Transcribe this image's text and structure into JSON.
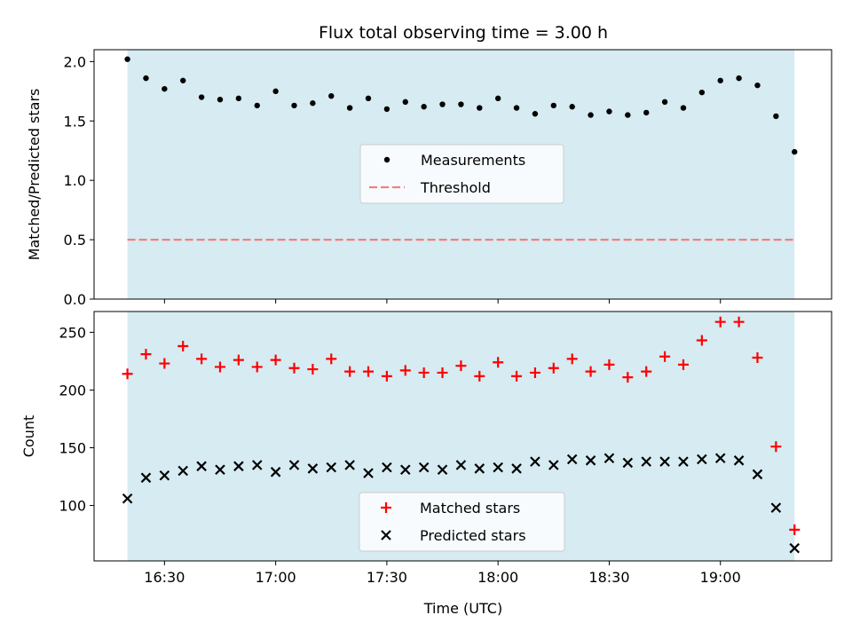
{
  "chart_data": {
    "title": "Flux total observing time = 3.00 h",
    "xlabel": "Time (UTC)",
    "x_ticks": [
      "16:30",
      "17:00",
      "17:30",
      "18:00",
      "18:30",
      "19:00"
    ],
    "x_tick_values": [
      "16:30",
      "17:00",
      "17:30",
      "18:00",
      "18:30",
      "19:00"
    ],
    "xlim": [
      "16:11",
      "19:30"
    ],
    "shade_span": [
      "16:20",
      "19:20"
    ],
    "shade_color": "#add8e6",
    "x": [
      "16:20",
      "16:25",
      "16:30",
      "16:35",
      "16:40",
      "16:45",
      "16:50",
      "16:55",
      "17:00",
      "17:05",
      "17:10",
      "17:15",
      "17:20",
      "17:25",
      "17:30",
      "17:35",
      "17:40",
      "17:45",
      "17:50",
      "17:55",
      "18:00",
      "18:05",
      "18:10",
      "18:15",
      "18:20",
      "18:25",
      "18:30",
      "18:35",
      "18:40",
      "18:45",
      "18:50",
      "18:55",
      "19:00",
      "19:05",
      "19:10",
      "19:15",
      "19:20"
    ],
    "panels": [
      {
        "type": "scatter",
        "ylabel": "Matched/Predicted stars",
        "ylim": [
          0.0,
          2.1
        ],
        "y_ticks": [
          "0.0",
          "0.5",
          "1.0",
          "1.5",
          "2.0"
        ],
        "y_tick_values": [
          0.0,
          0.5,
          1.0,
          1.5,
          2.0
        ],
        "legend": "center",
        "series": [
          {
            "name": "Measurements",
            "kind": "scatter",
            "marker": "dot",
            "color": "#000000",
            "values": [
              2.02,
              1.86,
              1.77,
              1.84,
              1.7,
              1.68,
              1.69,
              1.63,
              1.75,
              1.63,
              1.65,
              1.71,
              1.61,
              1.69,
              1.6,
              1.66,
              1.62,
              1.64,
              1.64,
              1.61,
              1.69,
              1.61,
              1.56,
              1.63,
              1.62,
              1.55,
              1.58,
              1.55,
              1.57,
              1.66,
              1.61,
              1.74,
              1.84,
              1.86,
              1.8,
              1.54,
              1.24
            ]
          },
          {
            "name": "Threshold",
            "kind": "hline",
            "style": "dashed",
            "color": "#f08080",
            "value": 0.5
          }
        ]
      },
      {
        "type": "scatter",
        "ylabel": "Count",
        "ylim": [
          52,
          268
        ],
        "y_ticks": [
          "100",
          "150",
          "200",
          "250"
        ],
        "y_tick_values": [
          100,
          150,
          200,
          250
        ],
        "legend": "lower center",
        "series": [
          {
            "name": "Matched stars",
            "kind": "scatter",
            "marker": "plus",
            "color": "#ff0000",
            "values": [
              214,
              231,
              223,
              238,
              227,
              220,
              226,
              220,
              226,
              219,
              218,
              227,
              216,
              216,
              212,
              217,
              215,
              215,
              221,
              212,
              224,
              212,
              215,
              219,
              227,
              216,
              222,
              211,
              216,
              229,
              222,
              243,
              259,
              259,
              228,
              151,
              79
            ]
          },
          {
            "name": "Predicted stars",
            "kind": "scatter",
            "marker": "x",
            "color": "#000000",
            "values": [
              106,
              124,
              126,
              130,
              134,
              131,
              134,
              135,
              129,
              135,
              132,
              133,
              135,
              128,
              133,
              131,
              133,
              131,
              135,
              132,
              133,
              132,
              138,
              135,
              140,
              139,
              141,
              137,
              138,
              138,
              138,
              140,
              141,
              139,
              127,
              98,
              63
            ]
          }
        ]
      }
    ]
  }
}
